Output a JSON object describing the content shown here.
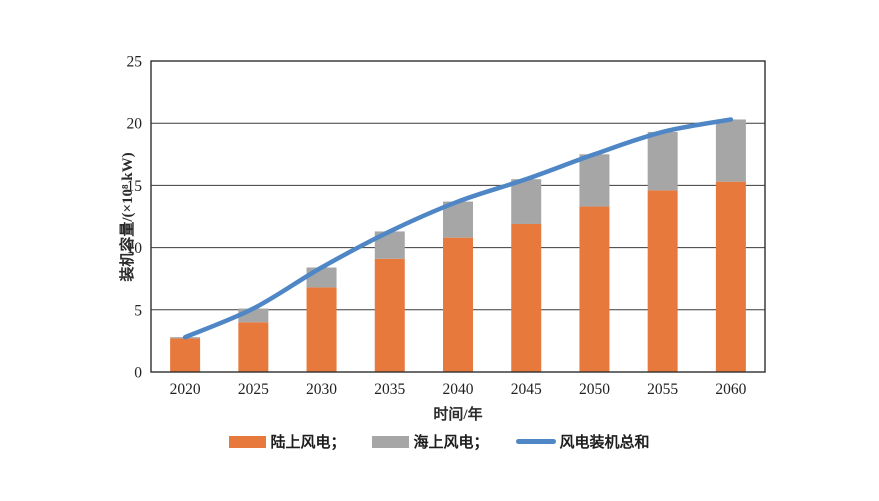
{
  "figure": {
    "background": "#ffffff",
    "plot_border_color": "#2f2f2f",
    "gridline_color": "#3c3c3c",
    "text_color": "#222222"
  },
  "chart_data": {
    "type": "bar",
    "subtype": "stacked-bars-with-total-line",
    "title": "",
    "xlabel": "时间/年",
    "ylabel": "装机容量/(×10⁸ kW)",
    "categories": [
      "2020",
      "2025",
      "2030",
      "2035",
      "2040",
      "2045",
      "2050",
      "2055",
      "2060"
    ],
    "series": [
      {
        "name": "陆上风电",
        "type": "bar",
        "color": "#E8793D",
        "values": [
          2.7,
          4.0,
          6.8,
          9.1,
          10.8,
          11.9,
          13.3,
          14.6,
          15.3
        ]
      },
      {
        "name": "海上风电",
        "type": "bar",
        "color": "#A6A6A6",
        "values": [
          0.1,
          1.1,
          1.6,
          2.2,
          2.9,
          3.6,
          4.2,
          4.7,
          5.0
        ]
      },
      {
        "name": "风电装机总和",
        "type": "line",
        "color": "#4E86C6",
        "values": [
          2.8,
          5.1,
          8.4,
          11.3,
          13.7,
          15.5,
          17.5,
          19.3,
          20.3
        ]
      }
    ],
    "ylim": [
      0,
      25
    ],
    "yticks": [
      "0",
      "5",
      "10",
      "15",
      "20",
      "25"
    ],
    "grid": "horizontal",
    "legend_position": "bottom"
  },
  "legend": {
    "items": [
      {
        "label": "陆上风电；",
        "swatch": "rect",
        "series_index": 0
      },
      {
        "label": "海上风电；",
        "swatch": "rect",
        "series_index": 1
      },
      {
        "label": "风电装机总和",
        "swatch": "line",
        "series_index": 2
      }
    ]
  }
}
